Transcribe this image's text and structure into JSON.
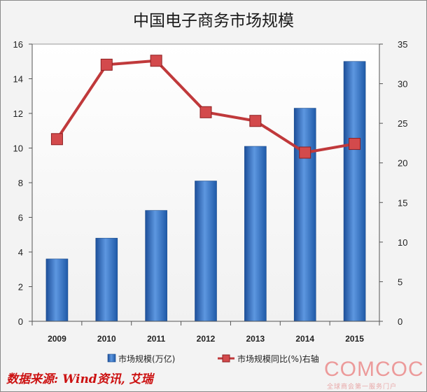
{
  "chart_data": {
    "type": "bar+line",
    "title": "中国电子商务市场规模",
    "categories": [
      "2009",
      "2010",
      "2011",
      "2012",
      "2013",
      "2014",
      "2015"
    ],
    "series": [
      {
        "name": "市场规模(万亿)",
        "type": "bar",
        "axis": "left",
        "values": [
          3.6,
          4.8,
          6.4,
          8.1,
          10.1,
          12.3,
          15.0
        ]
      },
      {
        "name": "市场规模同比(%)右轴",
        "type": "line",
        "axis": "right",
        "values": [
          23.0,
          32.4,
          32.9,
          26.4,
          25.3,
          21.3,
          22.4
        ]
      }
    ],
    "y_left": {
      "range": [
        0,
        16
      ],
      "ticks": [
        "0",
        "2",
        "4",
        "6",
        "8",
        "10",
        "12",
        "14",
        "16"
      ]
    },
    "y_right": {
      "range": [
        0,
        35
      ],
      "ticks": [
        "0",
        "5",
        "10",
        "15",
        "20",
        "25",
        "30",
        "35"
      ]
    },
    "grid": false,
    "legend_position": "bottom",
    "colors": {
      "bar": "#3a78c8",
      "line": "#c0393b",
      "marker_fill": "#d34a4c"
    }
  },
  "source_note": "数据来源: Wind资讯, 艾瑞",
  "watermark": {
    "logo": "COMCOC",
    "tagline": "全球商会第一服务门户"
  }
}
